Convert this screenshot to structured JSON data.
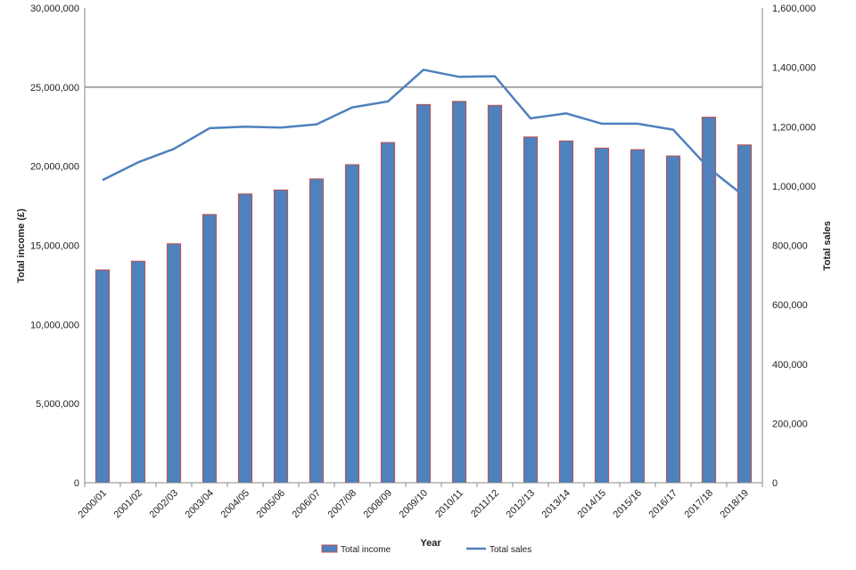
{
  "chart_data": {
    "type": "bar",
    "categories": [
      "2000/01",
      "2001/02",
      "2002/03",
      "2003/04",
      "2004/05",
      "2005/06",
      "2006/07",
      "2007/08",
      "2008/09",
      "2009/10",
      "2010/11",
      "2011/12",
      "2012/13",
      "2013/14",
      "2014/15",
      "2015/16",
      "2016/17",
      "2017/18",
      "2018/19"
    ],
    "series": [
      {
        "name": "Total income",
        "type": "bar",
        "axis": "left",
        "values": [
          13450000,
          14000000,
          15100000,
          16950000,
          18250000,
          18500000,
          19200000,
          20100000,
          21500000,
          23900000,
          24100000,
          23850000,
          21850000,
          21600000,
          21150000,
          21050000,
          20650000,
          23100000,
          21350000
        ]
      },
      {
        "name": "Total sales",
        "type": "line",
        "axis": "right",
        "values": [
          1020000,
          1080000,
          1125000,
          1195000,
          1200000,
          1197000,
          1208000,
          1265000,
          1285000,
          1392000,
          1368000,
          1370000,
          1228000,
          1245000,
          1210000,
          1210000,
          1190000,
          1060000,
          965000
        ]
      }
    ],
    "xlabel": "Year",
    "ylabel_left": "Total income (£)",
    "ylabel_right": "Total sales",
    "ylim_left": [
      0,
      30000000
    ],
    "ylim_right": [
      0,
      1600000
    ],
    "yticks_left": [
      "0",
      "5,000,000",
      "10,000,000",
      "15,000,000",
      "20,000,000",
      "25,000,000",
      "30,000,000"
    ],
    "yticks_right": [
      "0",
      "200,000",
      "400,000",
      "600,000",
      "800,000",
      "1,000,000",
      "1,200,000",
      "1,400,000",
      "1,600,000"
    ],
    "gridlines": "25,000,000 only",
    "legend_position": "bottom",
    "colors": {
      "bar_fill": "#4f81bd",
      "bar_stroke": "#c0504d",
      "line": "#4f81bd",
      "axis": "#888888"
    }
  }
}
